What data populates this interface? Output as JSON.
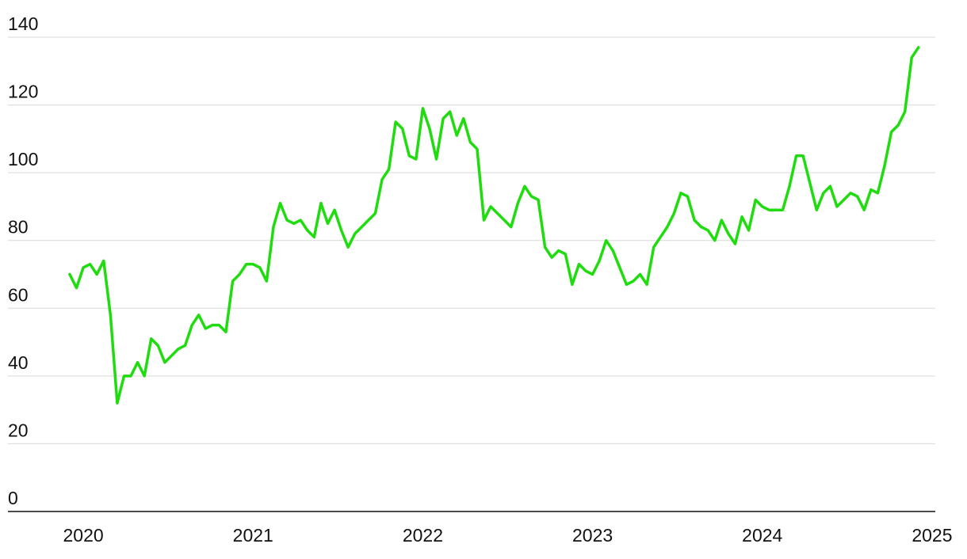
{
  "chart_data": {
    "type": "line",
    "x": [
      2019.92,
      2019.96,
      2020,
      2020.04,
      2020.08,
      2020.12,
      2020.16,
      2020.2,
      2020.24,
      2020.28,
      2020.32,
      2020.36,
      2020.4,
      2020.44,
      2020.48,
      2020.52,
      2020.56,
      2020.6,
      2020.64,
      2020.68,
      2020.72,
      2020.76,
      2020.8,
      2020.84,
      2020.88,
      2020.92,
      2020.96,
      2021,
      2021.04,
      2021.08,
      2021.12,
      2021.16,
      2021.2,
      2021.24,
      2021.28,
      2021.32,
      2021.36,
      2021.4,
      2021.44,
      2021.48,
      2021.52,
      2021.56,
      2021.6,
      2021.64,
      2021.68,
      2021.72,
      2021.76,
      2021.8,
      2021.84,
      2021.88,
      2021.92,
      2021.96,
      2022,
      2022.04,
      2022.08,
      2022.12,
      2022.16,
      2022.2,
      2022.24,
      2022.28,
      2022.32,
      2022.36,
      2022.4,
      2022.44,
      2022.48,
      2022.52,
      2022.56,
      2022.6,
      2022.64,
      2022.68,
      2022.72,
      2022.76,
      2022.8,
      2022.84,
      2022.88,
      2022.92,
      2022.96,
      2023,
      2023.04,
      2023.08,
      2023.12,
      2023.16,
      2023.2,
      2023.24,
      2023.28,
      2023.32,
      2023.36,
      2023.4,
      2023.44,
      2023.48,
      2023.52,
      2023.56,
      2023.6,
      2023.64,
      2023.68,
      2023.72,
      2023.76,
      2023.8,
      2023.84,
      2023.88,
      2023.92,
      2023.96,
      2024,
      2024.04,
      2024.08,
      2024.12,
      2024.16,
      2024.2,
      2024.24,
      2024.28,
      2024.32,
      2024.36,
      2024.4,
      2024.44,
      2024.48,
      2024.52,
      2024.56,
      2024.6,
      2024.64,
      2024.68,
      2024.72,
      2024.76,
      2024.8,
      2024.84,
      2024.88,
      2024.92
    ],
    "values": [
      70,
      66,
      72,
      73,
      70,
      74,
      58,
      32,
      40,
      40,
      44,
      40,
      51,
      49,
      44,
      46,
      48,
      49,
      55,
      58,
      54,
      55,
      55,
      53,
      68,
      70,
      73,
      73,
      72,
      68,
      84,
      91,
      86,
      85,
      86,
      83,
      81,
      91,
      85,
      89,
      83,
      78,
      82,
      84,
      86,
      88,
      98,
      101,
      115,
      113,
      105,
      104,
      119,
      113,
      104,
      116,
      118,
      111,
      116,
      109,
      107,
      86,
      90,
      88,
      86,
      84,
      91,
      96,
      93,
      92,
      78,
      75,
      77,
      76,
      67,
      73,
      71,
      70,
      74,
      80,
      77,
      72,
      67,
      68,
      70,
      67,
      78,
      81,
      84,
      88,
      94,
      93,
      86,
      84,
      83,
      80,
      86,
      82,
      79,
      87,
      83,
      92,
      90,
      89,
      89,
      89,
      96,
      105,
      105,
      97,
      89,
      94,
      96,
      90,
      92,
      94,
      93,
      89,
      95,
      94,
      102,
      112,
      114,
      118,
      134,
      137
    ],
    "color": "#1fdc0f",
    "xlim": [
      2019.556,
      2025.019
    ],
    "xticks": [
      2020,
      2021,
      2022,
      2023,
      2024,
      2025
    ],
    "ylim": [
      0,
      140
    ],
    "yticks": [
      0,
      20,
      40,
      60,
      80,
      100,
      120,
      140
    ],
    "grid": true
  }
}
